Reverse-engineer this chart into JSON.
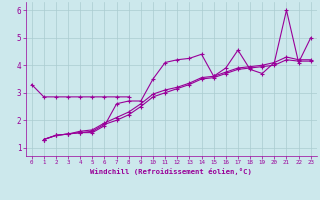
{
  "xlabel": "Windchill (Refroidissement éolien,°C)",
  "bg_color": "#cce8ec",
  "line_color": "#990099",
  "xlim": [
    -0.5,
    23.5
  ],
  "ylim": [
    0.7,
    6.3
  ],
  "xticks": [
    0,
    1,
    2,
    3,
    4,
    5,
    6,
    7,
    8,
    9,
    10,
    11,
    12,
    13,
    14,
    15,
    16,
    17,
    18,
    19,
    20,
    21,
    22,
    23
  ],
  "yticks": [
    1,
    2,
    3,
    4,
    5,
    6
  ],
  "grid_color": "#aaccd0",
  "series": [
    {
      "x": [
        0,
        1,
        2,
        3,
        4,
        5,
        6,
        7,
        8
      ],
      "y": [
        3.3,
        2.85,
        2.85,
        2.85,
        2.85,
        2.85,
        2.85,
        2.85,
        2.85
      ]
    },
    {
      "x": [
        1,
        2,
        3,
        4,
        5,
        6,
        7,
        8,
        9,
        10,
        11,
        12,
        13,
        14,
        15,
        16,
        17,
        18,
        19,
        20,
        21,
        22,
        23
      ],
      "y": [
        1.3,
        1.45,
        1.5,
        1.55,
        1.55,
        1.8,
        2.6,
        2.7,
        2.7,
        3.5,
        4.1,
        4.2,
        4.25,
        4.4,
        3.6,
        3.9,
        4.55,
        3.85,
        3.7,
        4.1,
        6.0,
        4.1,
        5.0
      ]
    },
    {
      "x": [
        1,
        2,
        3,
        4,
        5,
        6,
        7,
        8,
        9,
        10,
        11,
        12,
        13,
        14,
        15,
        16,
        17,
        18,
        19,
        20,
        21,
        22,
        23
      ],
      "y": [
        1.3,
        1.45,
        1.5,
        1.55,
        1.6,
        1.85,
        2.0,
        2.2,
        2.5,
        2.85,
        3.0,
        3.15,
        3.3,
        3.5,
        3.55,
        3.7,
        3.85,
        3.9,
        3.95,
        4.0,
        4.2,
        4.15,
        4.15
      ]
    },
    {
      "x": [
        1,
        2,
        3,
        4,
        5,
        6,
        7,
        8,
        9,
        10,
        11,
        12,
        13,
        14,
        15,
        16,
        17,
        18,
        19,
        20,
        21,
        22,
        23
      ],
      "y": [
        1.3,
        1.45,
        1.5,
        1.6,
        1.65,
        1.9,
        2.1,
        2.3,
        2.6,
        2.95,
        3.1,
        3.2,
        3.35,
        3.55,
        3.6,
        3.75,
        3.9,
        3.95,
        4.0,
        4.1,
        4.3,
        4.2,
        4.2
      ]
    }
  ]
}
